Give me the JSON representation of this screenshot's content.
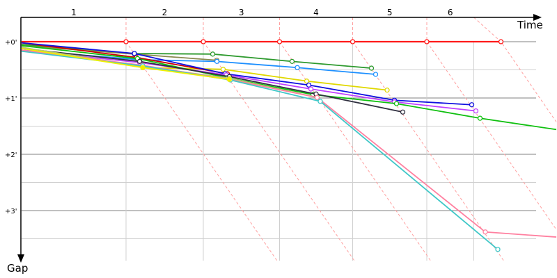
{
  "chart_data": {
    "type": "line",
    "xlabel": "Time",
    "ylabel": "Gap",
    "x_tick_labels": [
      "1",
      "2",
      "3",
      "4",
      "5",
      "6"
    ],
    "lap_boundaries": [
      0,
      1.0,
      1.74,
      2.47,
      3.17,
      3.88,
      4.33
    ],
    "y_tick_labels": [
      "+0'",
      "+1'",
      "+2'",
      "+3'"
    ],
    "y_ticks": [
      0,
      1,
      2,
      3
    ],
    "ylim": [
      0,
      3.9
    ],
    "xlim": [
      0,
      5.13
    ],
    "grid": true,
    "colors": {
      "major_grid": "#808080",
      "minor_grid": "#d0d0d0",
      "lap_line": "#ffa0a0"
    },
    "series": [
      {
        "color": "#ff1a1a",
        "t": [
          0,
          1,
          1.74,
          2.47,
          3.17,
          3.88,
          4.59
        ],
        "g": [
          0,
          0,
          0,
          0,
          0,
          0,
          0
        ]
      },
      {
        "color": "#2e9a2e",
        "t": [
          0,
          1.08,
          1.83,
          2.59,
          3.35
        ],
        "g": [
          0.05,
          0.21,
          0.22,
          0.35,
          0.47
        ]
      },
      {
        "color": "#8a8a50",
        "t": [
          0,
          1.08,
          1.87
        ],
        "g": [
          0.07,
          0.22,
          0.33
        ]
      },
      {
        "color": "#1e90ff",
        "t": [
          0,
          1.13,
          1.87,
          2.64,
          3.39
        ],
        "g": [
          0.15,
          0.32,
          0.35,
          0.46,
          0.58
        ]
      },
      {
        "color": "#e0d800",
        "t": [
          0,
          1.16,
          1.93,
          2.73,
          3.5
        ],
        "g": [
          0.1,
          0.46,
          0.49,
          0.7,
          0.86
        ]
      },
      {
        "color": "#cc0000",
        "t": [
          0,
          1.1,
          1.97
        ],
        "g": [
          0.02,
          0.28,
          0.57
        ]
      },
      {
        "color": "#1010e0",
        "t": [
          0,
          1.08,
          1.95,
          2.75,
          3.57,
          4.31
        ],
        "g": [
          0.02,
          0.21,
          0.57,
          0.77,
          1.04,
          1.12
        ]
      },
      {
        "color": "#c040ff",
        "t": [
          0,
          1.13,
          1.96,
          2.77,
          3.57,
          4.35
        ],
        "g": [
          0.15,
          0.37,
          0.59,
          0.84,
          1.07,
          1.23
        ]
      },
      {
        "color": "#10c010",
        "t": [
          0,
          1.11,
          1.97,
          2.79,
          3.59,
          4.39,
          5.13
        ],
        "g": [
          0.07,
          0.3,
          0.64,
          0.94,
          1.1,
          1.36,
          1.56
        ]
      },
      {
        "color": "#303040",
        "t": [
          0,
          1.13,
          1.99,
          2.82,
          3.65
        ],
        "g": [
          0.12,
          0.35,
          0.62,
          0.93,
          1.25
        ]
      },
      {
        "color": "#b8c870",
        "t": [
          0,
          1.16,
          1.99,
          2.83
        ],
        "g": [
          0.1,
          0.44,
          0.65,
          0.99
        ]
      },
      {
        "color": "#ff80a0",
        "t": [
          0,
          1.16,
          1.99,
          2.83,
          4.44,
          5.13
        ],
        "g": [
          0.15,
          0.42,
          0.67,
          0.99,
          3.38,
          3.47
        ]
      },
      {
        "color": "#40c8c8",
        "t": [
          0,
          1.16,
          2.0,
          2.86,
          4.56
        ],
        "g": [
          0.17,
          0.43,
          0.68,
          1.06,
          3.69
        ]
      },
      {
        "color": "#f0f000",
        "t": [
          0,
          1.16,
          1.99
        ],
        "g": [
          0.12,
          0.46,
          0.67
        ]
      }
    ]
  }
}
